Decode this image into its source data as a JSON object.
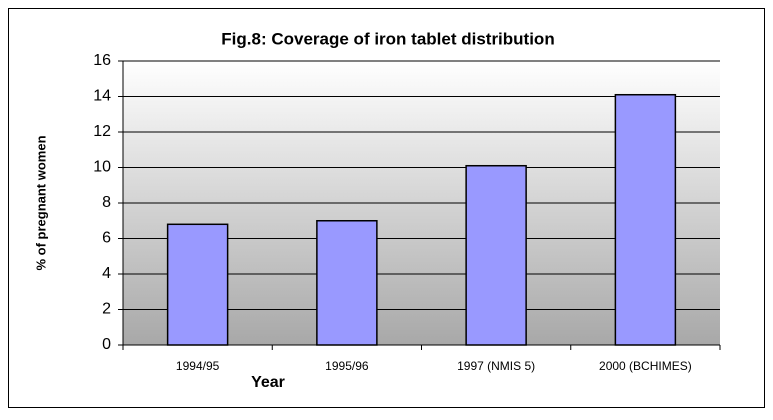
{
  "chart_data": {
    "type": "bar",
    "title": "Fig.8: Coverage of iron tablet distribution",
    "xlabel": "Year",
    "ylabel": "% of pregnant women",
    "categories": [
      "1994/95",
      "1995/96",
      "1997 (NMIS 5)",
      "2000 (BCHIMES)"
    ],
    "values": [
      6.8,
      7.0,
      10.1,
      14.1
    ],
    "color": "#9999ff",
    "ylim": [
      0,
      16
    ],
    "yticks": [
      0,
      2,
      4,
      6,
      8,
      10,
      12,
      14,
      16
    ],
    "grid": true
  }
}
